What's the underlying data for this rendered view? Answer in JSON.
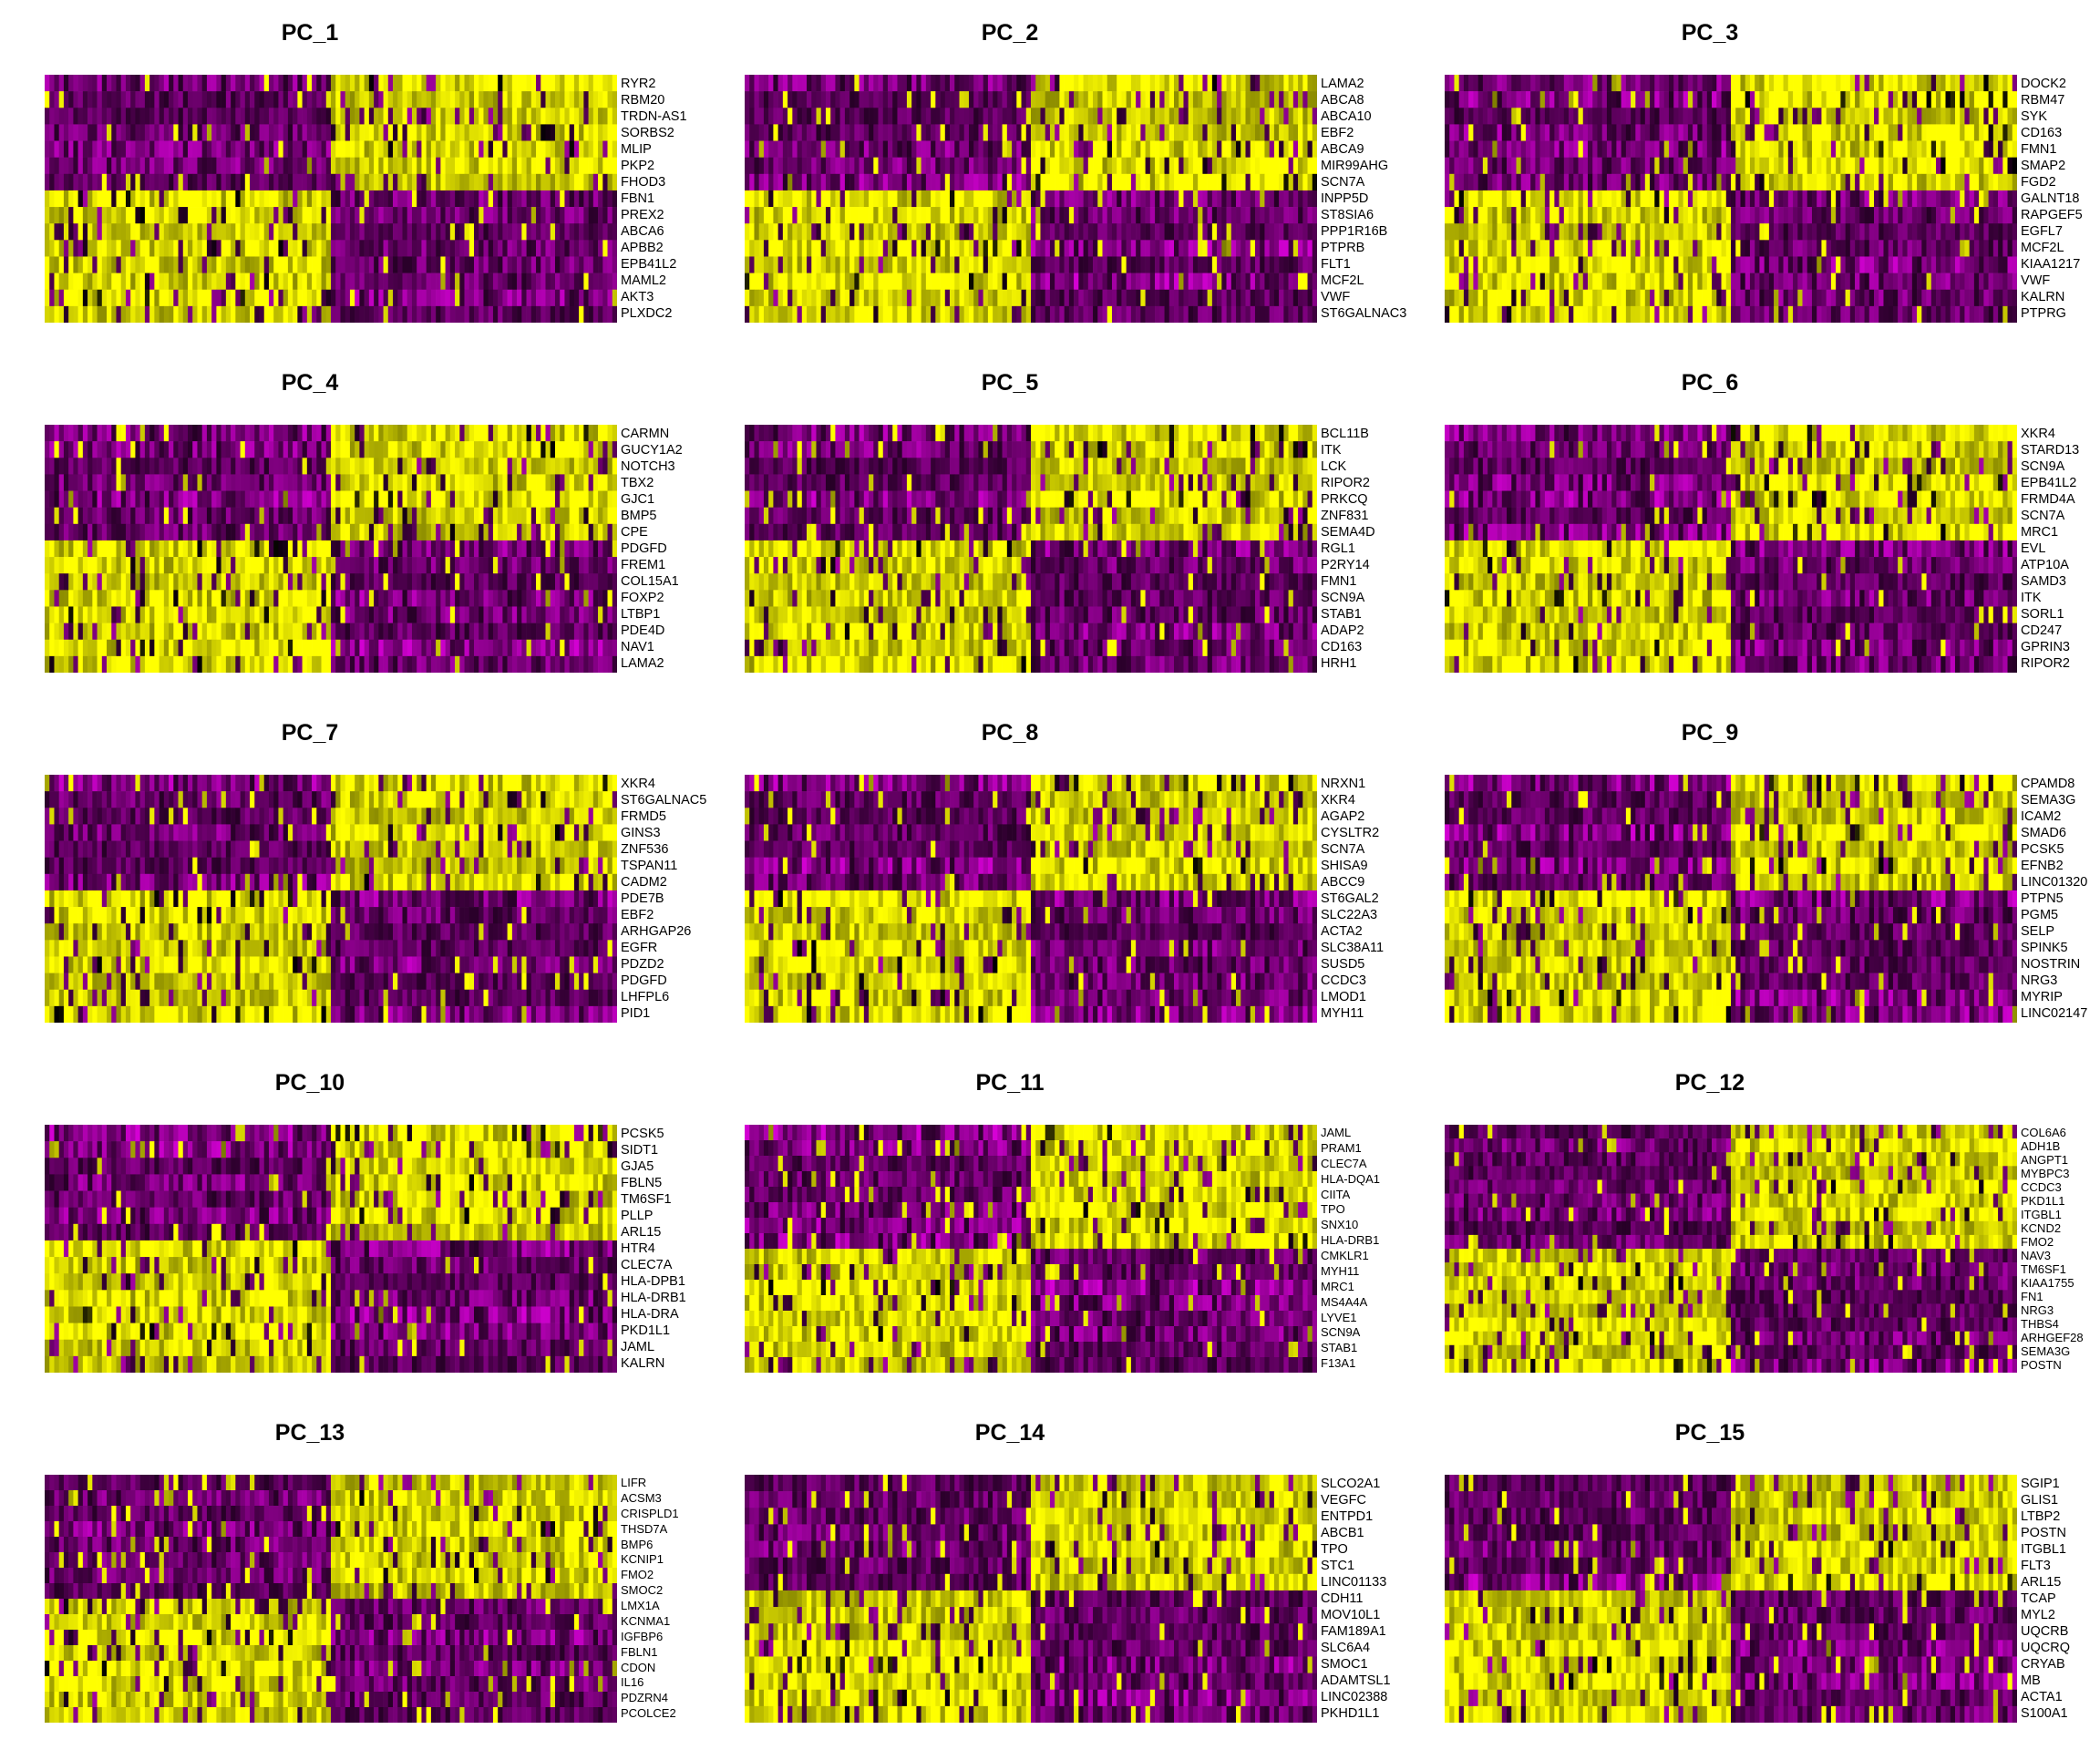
{
  "colors": {
    "low": "#ff00ff",
    "mid": "#000000",
    "high": "#ffff00"
  },
  "chart_data": [
    {
      "type": "heatmap",
      "title": "PC_1",
      "top_pattern": [
        "low",
        "high"
      ],
      "bottom_pattern": [
        "high",
        "low"
      ],
      "genes": [
        "RYR2",
        "RBM20",
        "TRDN-AS1",
        "SORBS2",
        "MLIP",
        "PKP2",
        "FHOD3",
        "FBN1",
        "PREX2",
        "ABCA6",
        "APBB2",
        "EPB41L2",
        "MAML2",
        "AKT3",
        "PLXDC2"
      ]
    },
    {
      "type": "heatmap",
      "title": "PC_2",
      "top_pattern": [
        "low",
        "high"
      ],
      "bottom_pattern": [
        "high",
        "low"
      ],
      "genes": [
        "LAMA2",
        "ABCA8",
        "ABCA10",
        "EBF2",
        "ABCA9",
        "MIR99AHG",
        "SCN7A",
        "INPP5D",
        "ST8SIA6",
        "PPP1R16B",
        "PTPRB",
        "FLT1",
        "MCF2L",
        "VWF",
        "ST6GALNAC3"
      ]
    },
    {
      "type": "heatmap",
      "title": "PC_3",
      "top_pattern": [
        "low",
        "high"
      ],
      "bottom_pattern": [
        "high",
        "low"
      ],
      "genes": [
        "DOCK2",
        "RBM47",
        "SYK",
        "CD163",
        "FMN1",
        "SMAP2",
        "FGD2",
        "GALNT18",
        "RAPGEF5",
        "EGFL7",
        "MCF2L",
        "KIAA1217",
        "VWF",
        "KALRN",
        "PTPRG"
      ]
    },
    {
      "type": "heatmap",
      "title": "PC_4",
      "top_pattern": [
        "low",
        "high"
      ],
      "bottom_pattern": [
        "high",
        "low"
      ],
      "genes": [
        "CARMN",
        "GUCY1A2",
        "NOTCH3",
        "TBX2",
        "GJC1",
        "BMP5",
        "CPE",
        "PDGFD",
        "FREM1",
        "COL15A1",
        "FOXP2",
        "LTBP1",
        "PDE4D",
        "NAV1",
        "LAMA2"
      ]
    },
    {
      "type": "heatmap",
      "title": "PC_5",
      "top_pattern": [
        "low",
        "high"
      ],
      "bottom_pattern": [
        "high",
        "low"
      ],
      "genes": [
        "BCL11B",
        "ITK",
        "LCK",
        "RIPOR2",
        "PRKCQ",
        "ZNF831",
        "SEMA4D",
        "RGL1",
        "P2RY14",
        "FMN1",
        "SCN9A",
        "STAB1",
        "ADAP2",
        "CD163",
        "HRH1"
      ]
    },
    {
      "type": "heatmap",
      "title": "PC_6",
      "top_pattern": [
        "low",
        "high"
      ],
      "bottom_pattern": [
        "high",
        "low"
      ],
      "genes": [
        "XKR4",
        "STARD13",
        "SCN9A",
        "EPB41L2",
        "FRMD4A",
        "SCN7A",
        "MRC1",
        "EVL",
        "ATP10A",
        "SAMD3",
        "ITK",
        "SORL1",
        "CD247",
        "GPRIN3",
        "RIPOR2"
      ]
    },
    {
      "type": "heatmap",
      "title": "PC_7",
      "top_pattern": [
        "low",
        "high"
      ],
      "bottom_pattern": [
        "high",
        "low"
      ],
      "genes": [
        "XKR4",
        "ST6GALNAC5",
        "FRMD5",
        "GINS3",
        "ZNF536",
        "TSPAN11",
        "CADM2",
        "PDE7B",
        "EBF2",
        "ARHGAP26",
        "EGFR",
        "PDZD2",
        "PDGFD",
        "LHFPL6",
        "PID1"
      ]
    },
    {
      "type": "heatmap",
      "title": "PC_8",
      "top_pattern": [
        "low",
        "high"
      ],
      "bottom_pattern": [
        "high",
        "low"
      ],
      "genes": [
        "NRXN1",
        "XKR4",
        "AGAP2",
        "CYSLTR2",
        "SCN7A",
        "SHISA9",
        "ABCC9",
        "ST6GAL2",
        "SLC22A3",
        "ACTA2",
        "SLC38A11",
        "SUSD5",
        "CCDC3",
        "LMOD1",
        "MYH11"
      ]
    },
    {
      "type": "heatmap",
      "title": "PC_9",
      "top_pattern": [
        "low",
        "high"
      ],
      "bottom_pattern": [
        "high",
        "low"
      ],
      "genes": [
        "CPAMD8",
        "SEMA3G",
        "ICAM2",
        "SMAD6",
        "PCSK5",
        "EFNB2",
        "LINC01320",
        "PTPN5",
        "PGM5",
        "SELP",
        "SPINK5",
        "NOSTRIN",
        "NRG3",
        "MYRIP",
        "LINC02147"
      ]
    },
    {
      "type": "heatmap",
      "title": "PC_10",
      "top_pattern": [
        "low",
        "high"
      ],
      "bottom_pattern": [
        "high",
        "low"
      ],
      "genes": [
        "PCSK5",
        "SIDT1",
        "GJA5",
        "FBLN5",
        "TM6SF1",
        "PLLP",
        "ARL15",
        "HTR4",
        "CLEC7A",
        "HLA-DPB1",
        "HLA-DRB1",
        "HLA-DRA",
        "PKD1L1",
        "JAML",
        "KALRN"
      ]
    },
    {
      "type": "heatmap",
      "title": "PC_11",
      "top_pattern": [
        "low",
        "high"
      ],
      "bottom_pattern": [
        "high",
        "low"
      ],
      "genes": [
        "JAML",
        "PRAM1",
        "CLEC7A",
        "HLA-DQA1",
        "CIITA",
        "TPO",
        "SNX10",
        "HLA-DRB1",
        "CMKLR1",
        "MYH11",
        "MRC1",
        "MS4A4A",
        "LYVE1",
        "SCN9A",
        "STAB1",
        "F13A1"
      ]
    },
    {
      "type": "heatmap",
      "title": "PC_12",
      "top_pattern": [
        "low",
        "high"
      ],
      "bottom_pattern": [
        "high",
        "low"
      ],
      "genes": [
        "COL6A6",
        "ADH1B",
        "ANGPT1",
        "MYBPC3",
        "CCDC3",
        "PKD1L1",
        "ITGBL1",
        "KCND2",
        "FMO2",
        "NAV3",
        "TM6SF1",
        "KIAA1755",
        "FN1",
        "NRG3",
        "THBS4",
        "ARHGEF28",
        "SEMA3G",
        "POSTN"
      ]
    },
    {
      "type": "heatmap",
      "title": "PC_13",
      "top_pattern": [
        "low",
        "high"
      ],
      "bottom_pattern": [
        "high",
        "low"
      ],
      "genes": [
        "LIFR",
        "ACSM3",
        "CRISPLD1",
        "THSD7A",
        "BMP6",
        "KCNIP1",
        "FMO2",
        "SMOC2",
        "LMX1A",
        "KCNMA1",
        "IGFBP6",
        "FBLN1",
        "CDON",
        "IL16",
        "PDZRN4",
        "PCOLCE2"
      ]
    },
    {
      "type": "heatmap",
      "title": "PC_14",
      "top_pattern": [
        "low",
        "high"
      ],
      "bottom_pattern": [
        "high",
        "low"
      ],
      "genes": [
        "SLCO2A1",
        "VEGFC",
        "ENTPD1",
        "ABCB1",
        "TPO",
        "STC1",
        "LINC01133",
        "CDH11",
        "MOV10L1",
        "FAM189A1",
        "SLC6A4",
        "SMOC1",
        "ADAMTSL1",
        "LINC02388",
        "PKHD1L1"
      ]
    },
    {
      "type": "heatmap",
      "title": "PC_15",
      "top_pattern": [
        "low",
        "high"
      ],
      "bottom_pattern": [
        "high",
        "low"
      ],
      "genes": [
        "SGIP1",
        "GLIS1",
        "LTBP2",
        "POSTN",
        "ITGBL1",
        "FLT3",
        "ARL15",
        "TCAP",
        "MYL2",
        "UQCRB",
        "UQCRQ",
        "CRYAB",
        "MB",
        "ACTA1",
        "S100A1"
      ]
    }
  ]
}
